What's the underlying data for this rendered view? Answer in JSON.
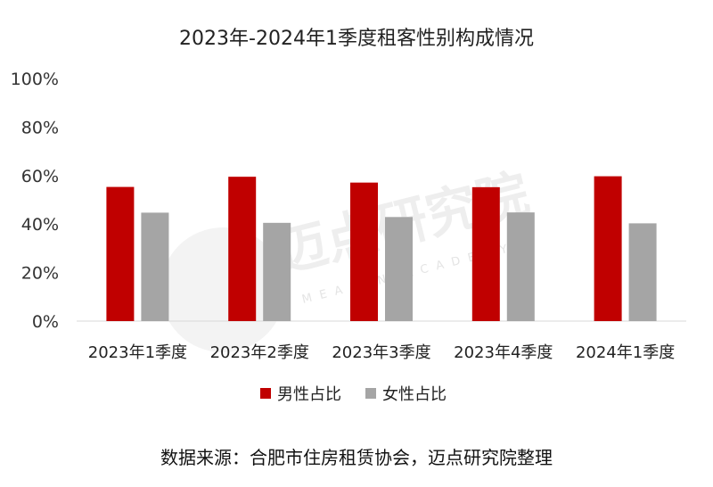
{
  "chart_data": {
    "type": "bar",
    "title": "2023年-2024年1季度租客性别构成情况",
    "categories": [
      "2023年1季度",
      "2023年2季度",
      "2023年3季度",
      "2023年4季度",
      "2024年1季度"
    ],
    "series": [
      {
        "name": "男性占比",
        "values": [
          55.3,
          59.5,
          57.1,
          55.2,
          59.7
        ]
      },
      {
        "name": "女性占比",
        "values": [
          44.7,
          40.5,
          42.9,
          44.8,
          40.3
        ]
      }
    ],
    "ylim": [
      0,
      100
    ],
    "yticks": [
      "0%",
      "20%",
      "40%",
      "60%",
      "80%",
      "100%"
    ],
    "grid": false,
    "legend": "bottom",
    "colors": [
      "#c00000",
      "#a5a5a5"
    ]
  },
  "source": "数据来源：合肥市住房租赁协会，迈点研究院整理",
  "watermark": {
    "cn": "迈点研究院",
    "en": "MEADIN ACADEMY"
  }
}
